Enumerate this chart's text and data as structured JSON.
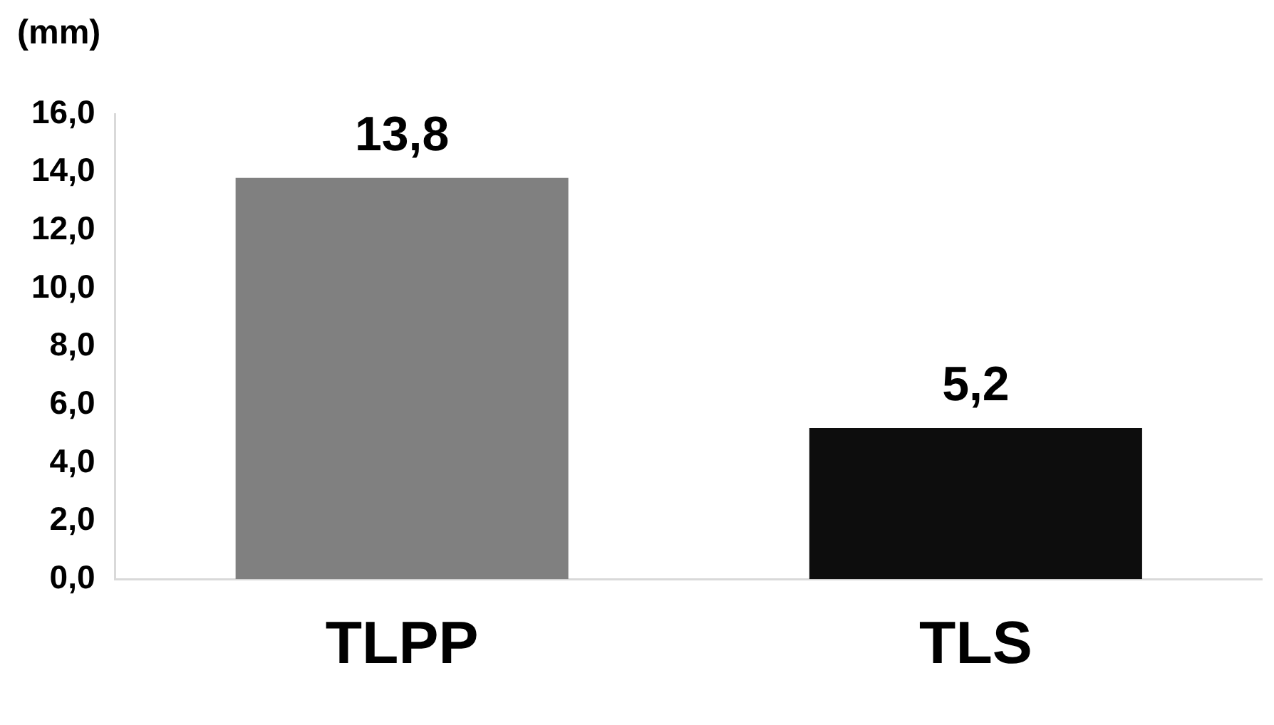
{
  "chart_data": {
    "type": "bar",
    "ylabel": "(mm)",
    "categories": [
      "TLPP",
      "TLS"
    ],
    "values": [
      13.8,
      5.2
    ],
    "colors": [
      "#808080",
      "#0d0d0d"
    ],
    "value_labels": [
      "13,8",
      "5,2"
    ],
    "ylim": [
      0,
      16
    ],
    "yticks": [
      {
        "value": 0,
        "label": "0,0"
      },
      {
        "value": 2,
        "label": "2,0"
      },
      {
        "value": 4,
        "label": "4,0"
      },
      {
        "value": 6,
        "label": "6,0"
      },
      {
        "value": 8,
        "label": "8,0"
      },
      {
        "value": 10,
        "label": "10,0"
      },
      {
        "value": 12,
        "label": "12,0"
      },
      {
        "value": 14,
        "label": "14,0"
      },
      {
        "value": 16,
        "label": "16,0"
      }
    ],
    "grid": false,
    "legend": false
  }
}
